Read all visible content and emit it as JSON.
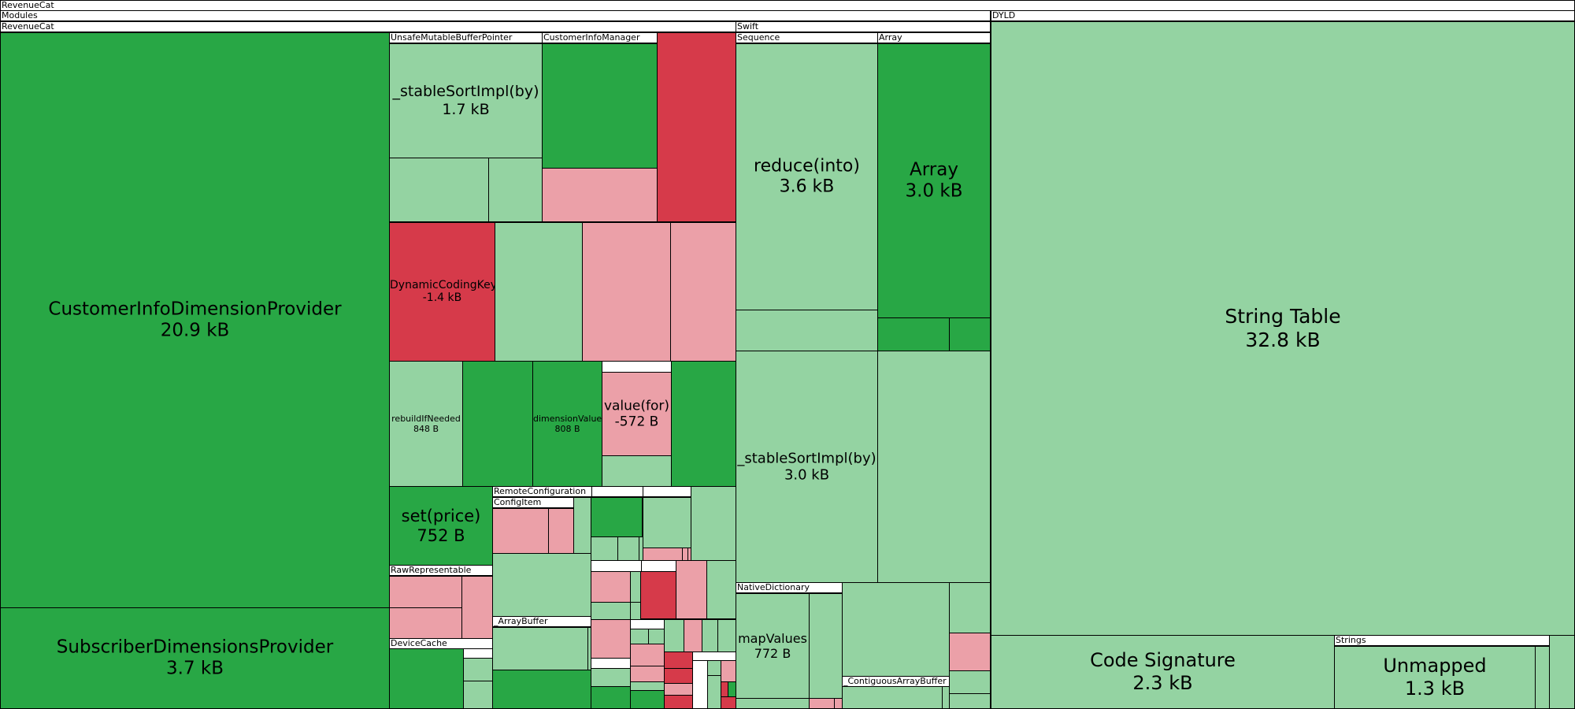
{
  "colors": {
    "dark_green": "#28a745",
    "light_green": "#94d3a2",
    "red": "#d63a4a",
    "pink": "#eba0a8",
    "header": "#ffffff",
    "border": "#000000"
  },
  "headers": {
    "revenuecat_root": "RevenueCat",
    "modules": "Modules",
    "revenuecat": "RevenueCat",
    "dyld": "DYLD",
    "swift": "Swift",
    "unsafe_mutable_buffer_pointer": "UnsafeMutableBufferPointer",
    "customer_info_manager": "CustomerInfoManager",
    "sequence": "Sequence",
    "array": "Array",
    "remote_configuration": "RemoteConfiguration",
    "config_item": "ConfigItem",
    "raw_representable": "RawRepresentable",
    "array_buffer": "_ArrayBuffer",
    "device_cache": "DeviceCache",
    "native_dictionary": "NativeDictionary",
    "contiguous_array_buffer": "_ContiguousArrayBuffer",
    "strings": "Strings"
  },
  "chart_data": {
    "type": "treemap",
    "title": "RevenueCat",
    "nodes": [
      {
        "name": "CustomerInfoDimensionProvider",
        "size": "20.9 kB",
        "change": "increase"
      },
      {
        "name": "SubscriberDimensionsProvider",
        "size": "3.7 kB",
        "change": "increase"
      },
      {
        "name": "_stableSortImpl(by)",
        "group": "UnsafeMutableBufferPointer",
        "size": "1.7 kB",
        "change": "unchanged"
      },
      {
        "name": "DynamicCodingKey",
        "size": "-1.4 kB",
        "change": "decrease"
      },
      {
        "name": "rebuildIfNeeded",
        "size": "848 B",
        "change": "unchanged"
      },
      {
        "name": "dimensionValue",
        "size": "808 B",
        "change": "increase"
      },
      {
        "name": "value(for)",
        "size": "-572 B",
        "change": "decrease"
      },
      {
        "name": "set(price)",
        "size": "752 B",
        "change": "increase"
      },
      {
        "name": "reduce(into)",
        "group": "Sequence",
        "size": "3.6 kB",
        "change": "unchanged"
      },
      {
        "name": "Array",
        "group": "Array",
        "size": "3.0 kB",
        "change": "increase"
      },
      {
        "name": "_stableSortImpl(by)",
        "group": "Swift",
        "size": "3.0 kB",
        "change": "unchanged"
      },
      {
        "name": "mapValues",
        "group": "NativeDictionary",
        "size": "772 B",
        "change": "unchanged"
      },
      {
        "name": "String Table",
        "group": "DYLD",
        "size": "32.8 kB",
        "change": "unchanged"
      },
      {
        "name": "Code Signature",
        "size": "2.3 kB",
        "change": "unchanged"
      },
      {
        "name": "Unmapped",
        "group": "Strings",
        "size": "1.3 kB",
        "change": "unchanged"
      }
    ]
  }
}
